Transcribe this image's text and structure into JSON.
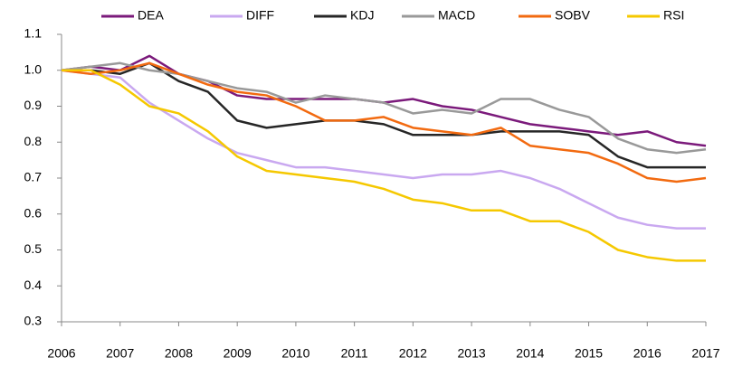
{
  "chart_data": {
    "type": "line",
    "x": [
      2006,
      2006.5,
      2007,
      2007.5,
      2008,
      2008.5,
      2009,
      2009.5,
      2010,
      2010.5,
      2011,
      2011.5,
      2012,
      2012.5,
      2013,
      2013.5,
      2014,
      2014.5,
      2015,
      2015.5,
      2016,
      2016.5,
      2017
    ],
    "series": [
      {
        "name": "DEA",
        "color": "#7b1a7b",
        "values": [
          1.0,
          1.01,
          1.0,
          1.04,
          0.99,
          0.97,
          0.93,
          0.92,
          0.92,
          0.92,
          0.92,
          0.91,
          0.92,
          0.9,
          0.89,
          0.87,
          0.85,
          0.84,
          0.83,
          0.82,
          0.83,
          0.8,
          0.79
        ]
      },
      {
        "name": "DIFF",
        "color": "#c9a8f0",
        "values": [
          1.0,
          0.99,
          0.98,
          0.91,
          0.86,
          0.81,
          0.77,
          0.75,
          0.73,
          0.73,
          0.72,
          0.71,
          0.7,
          0.71,
          0.71,
          0.72,
          0.7,
          0.67,
          0.63,
          0.59,
          0.57,
          0.56,
          0.56
        ]
      },
      {
        "name": "KDJ",
        "color": "#262626",
        "values": [
          1.0,
          1.0,
          0.99,
          1.02,
          0.97,
          0.94,
          0.86,
          0.84,
          0.85,
          0.86,
          0.86,
          0.85,
          0.82,
          0.82,
          0.82,
          0.83,
          0.83,
          0.83,
          0.82,
          0.76,
          0.73,
          0.73,
          0.73
        ]
      },
      {
        "name": "MACD",
        "color": "#999999",
        "values": [
          1.0,
          1.01,
          1.02,
          1.0,
          0.99,
          0.97,
          0.95,
          0.94,
          0.91,
          0.93,
          0.92,
          0.91,
          0.88,
          0.89,
          0.88,
          0.92,
          0.92,
          0.89,
          0.87,
          0.81,
          0.78,
          0.77,
          0.78
        ]
      },
      {
        "name": "SOBV",
        "color": "#f26a10",
        "values": [
          1.0,
          0.99,
          1.0,
          1.02,
          0.99,
          0.96,
          0.94,
          0.93,
          0.9,
          0.86,
          0.86,
          0.87,
          0.84,
          0.83,
          0.82,
          0.84,
          0.79,
          0.78,
          0.77,
          0.74,
          0.7,
          0.69,
          0.7
        ]
      },
      {
        "name": "RSI",
        "color": "#f5c800",
        "values": [
          1.0,
          1.0,
          0.96,
          0.9,
          0.88,
          0.83,
          0.76,
          0.72,
          0.71,
          0.7,
          0.69,
          0.67,
          0.64,
          0.63,
          0.61,
          0.61,
          0.58,
          0.58,
          0.55,
          0.5,
          0.48,
          0.47,
          0.47
        ]
      }
    ],
    "xlim": [
      2006,
      2017
    ],
    "xticks": [
      2006,
      2007,
      2008,
      2009,
      2010,
      2011,
      2012,
      2013,
      2014,
      2015,
      2016,
      2017
    ],
    "ylim": [
      0.3,
      1.1
    ],
    "yticks": [
      0.3,
      0.4,
      0.5,
      0.6,
      0.7,
      0.8,
      0.9,
      {
        "value": 1,
        "label": "1.0"
      },
      1.1
    ],
    "legend": "top",
    "grid": false
  }
}
